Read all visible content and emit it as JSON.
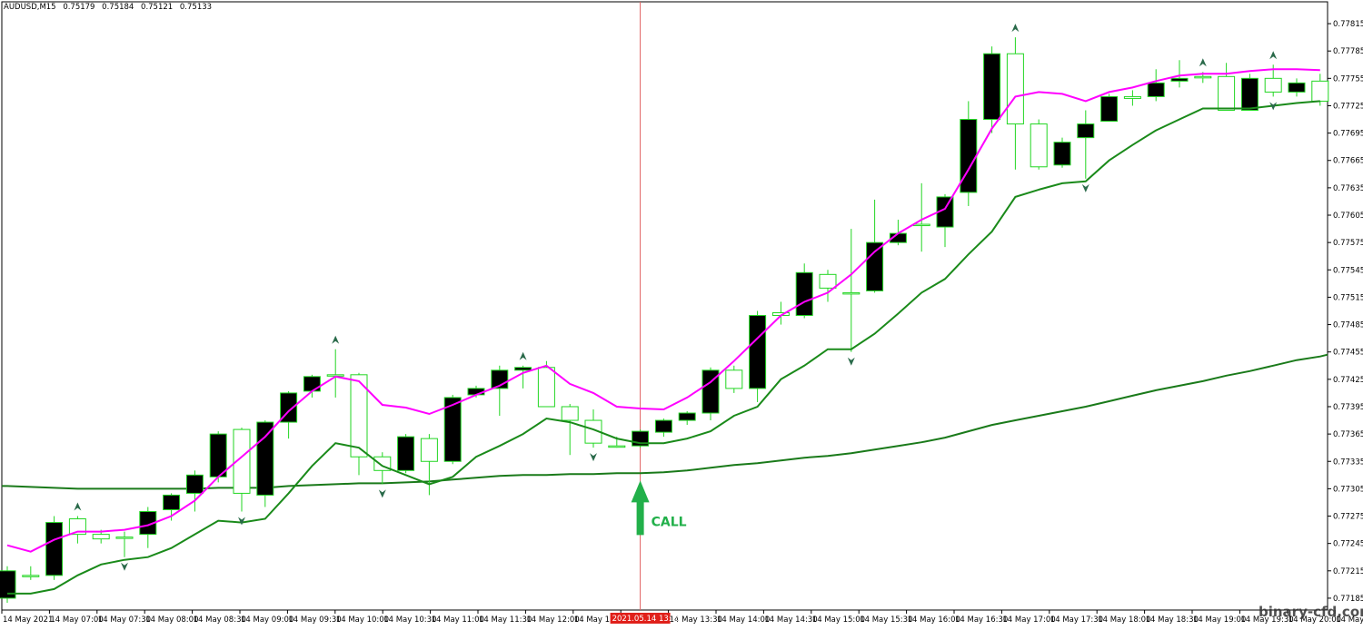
{
  "header": {
    "symbol": "AUDUSD,M15",
    "open": "0.75179",
    "high": "0.75184",
    "low": "0.75121",
    "close": "0.75133"
  },
  "colors": {
    "background": "#ffffff",
    "bull_candle": "#22d622",
    "bear_candle": "#000000",
    "ma_fast": "#ff00ff",
    "ma_slow": "#1a8a1a",
    "ma_long": "#1a7a1a",
    "signal_line": "#e06060",
    "call_arrow": "#22b04a",
    "time_label_bg": "#e0201a"
  },
  "signal": {
    "label": "CALL",
    "time_label": "2021.05.14 13:15",
    "candle_index": 27
  },
  "watermark": "binary-cfd.com",
  "chart_data": {
    "type": "candlestick",
    "title": "AUDUSD,M15",
    "y_ticks": [
      "0.77815",
      "0.77785",
      "0.77755",
      "0.77725",
      "0.77695",
      "0.77665",
      "0.77635",
      "0.77605",
      "0.77575",
      "0.77545",
      "0.77515",
      "0.77485",
      "0.77455",
      "0.77425",
      "0.77395",
      "0.77365",
      "0.77335",
      "0.77305",
      "0.77275",
      "0.77245",
      "0.77215",
      "0.77185"
    ],
    "ylim": [
      0.77172,
      0.77827
    ],
    "x_ticks": [
      "14 May 2021",
      "14 May 07:00",
      "14 May 07:30",
      "14 May 08:00",
      "14 May 08:30",
      "14 May 09:00",
      "14 May 09:30",
      "14 May 10:00",
      "14 May 10:30",
      "14 May 11:00",
      "14 May 11:30",
      "14 May 12:00",
      "14 May 12:30",
      "",
      "14 May 13:30",
      "14 May 14:00",
      "14 May 14:30",
      "14 May 15:00",
      "14 May 15:30",
      "14 May 16:00",
      "14 May 16:30",
      "14 May 17:00",
      "14 May 17:30",
      "14 May 18:00",
      "14 May 18:30",
      "14 May 19:00",
      "14 May 19:30",
      "14 May 20:00",
      "14 May 20:"
    ],
    "candles": [
      {
        "o": 0.77215,
        "h": 0.7722,
        "l": 0.7718,
        "c": 0.77185
      },
      {
        "o": 0.7721,
        "h": 0.7722,
        "l": 0.77205,
        "c": 0.7721
      },
      {
        "o": 0.77268,
        "h": 0.77275,
        "l": 0.77205,
        "c": 0.7721
      },
      {
        "o": 0.77255,
        "h": 0.77275,
        "l": 0.77245,
        "c": 0.77272
      },
      {
        "o": 0.7725,
        "h": 0.7726,
        "l": 0.77245,
        "c": 0.77255
      },
      {
        "o": 0.77252,
        "h": 0.77258,
        "l": 0.7723,
        "c": 0.77252
      },
      {
        "o": 0.7728,
        "h": 0.77285,
        "l": 0.7724,
        "c": 0.77255
      },
      {
        "o": 0.77298,
        "h": 0.773,
        "l": 0.7727,
        "c": 0.77282
      },
      {
        "o": 0.7732,
        "h": 0.77325,
        "l": 0.7728,
        "c": 0.773
      },
      {
        "o": 0.77365,
        "h": 0.77368,
        "l": 0.77312,
        "c": 0.77318
      },
      {
        "o": 0.773,
        "h": 0.77372,
        "l": 0.7728,
        "c": 0.7737
      },
      {
        "o": 0.77378,
        "h": 0.7738,
        "l": 0.77285,
        "c": 0.77298
      },
      {
        "o": 0.7741,
        "h": 0.77412,
        "l": 0.7736,
        "c": 0.77378
      },
      {
        "o": 0.77428,
        "h": 0.7743,
        "l": 0.77405,
        "c": 0.77412
      },
      {
        "o": 0.7743,
        "h": 0.77458,
        "l": 0.77405,
        "c": 0.7743
      },
      {
        "o": 0.7734,
        "h": 0.77432,
        "l": 0.7732,
        "c": 0.7743
      },
      {
        "o": 0.77325,
        "h": 0.77345,
        "l": 0.7731,
        "c": 0.7734
      },
      {
        "o": 0.77362,
        "h": 0.77365,
        "l": 0.77322,
        "c": 0.77325
      },
      {
        "o": 0.77335,
        "h": 0.77365,
        "l": 0.77298,
        "c": 0.7736
      },
      {
        "o": 0.77405,
        "h": 0.77408,
        "l": 0.77332,
        "c": 0.77335
      },
      {
        "o": 0.77415,
        "h": 0.77418,
        "l": 0.77405,
        "c": 0.77408
      },
      {
        "o": 0.77435,
        "h": 0.7744,
        "l": 0.77385,
        "c": 0.77415
      },
      {
        "o": 0.77438,
        "h": 0.7744,
        "l": 0.77415,
        "c": 0.77435
      },
      {
        "o": 0.77395,
        "h": 0.77445,
        "l": 0.77395,
        "c": 0.77438
      },
      {
        "o": 0.7738,
        "h": 0.77398,
        "l": 0.77342,
        "c": 0.77395
      },
      {
        "o": 0.77355,
        "h": 0.77392,
        "l": 0.7735,
        "c": 0.7738
      },
      {
        "o": 0.77352,
        "h": 0.77362,
        "l": 0.7735,
        "c": 0.77352
      },
      {
        "o": 0.77368,
        "h": 0.7737,
        "l": 0.7735,
        "c": 0.77352
      },
      {
        "o": 0.7738,
        "h": 0.77382,
        "l": 0.77362,
        "c": 0.77367
      },
      {
        "o": 0.77388,
        "h": 0.7739,
        "l": 0.77375,
        "c": 0.7738
      },
      {
        "o": 0.77435,
        "h": 0.77438,
        "l": 0.7738,
        "c": 0.77388
      },
      {
        "o": 0.77415,
        "h": 0.7744,
        "l": 0.7741,
        "c": 0.77435
      },
      {
        "o": 0.77495,
        "h": 0.775,
        "l": 0.774,
        "c": 0.77415
      },
      {
        "o": 0.77495,
        "h": 0.7751,
        "l": 0.77485,
        "c": 0.77498
      },
      {
        "o": 0.77542,
        "h": 0.77552,
        "l": 0.77492,
        "c": 0.77495
      },
      {
        "o": 0.77525,
        "h": 0.77545,
        "l": 0.7751,
        "c": 0.7754
      },
      {
        "o": 0.7752,
        "h": 0.7759,
        "l": 0.77455,
        "c": 0.7752
      },
      {
        "o": 0.77575,
        "h": 0.77622,
        "l": 0.7752,
        "c": 0.77522
      },
      {
        "o": 0.77585,
        "h": 0.776,
        "l": 0.77572,
        "c": 0.77575
      },
      {
        "o": 0.77595,
        "h": 0.7764,
        "l": 0.77565,
        "c": 0.77595
      },
      {
        "o": 0.77625,
        "h": 0.77628,
        "l": 0.7757,
        "c": 0.77592
      },
      {
        "o": 0.7771,
        "h": 0.7773,
        "l": 0.77615,
        "c": 0.7763
      },
      {
        "o": 0.77782,
        "h": 0.7779,
        "l": 0.77695,
        "c": 0.7771
      },
      {
        "o": 0.77705,
        "h": 0.778,
        "l": 0.77655,
        "c": 0.77782
      },
      {
        "o": 0.77658,
        "h": 0.7771,
        "l": 0.77655,
        "c": 0.77705
      },
      {
        "o": 0.77685,
        "h": 0.7769,
        "l": 0.77657,
        "c": 0.7766
      },
      {
        "o": 0.77705,
        "h": 0.7772,
        "l": 0.77645,
        "c": 0.7769
      },
      {
        "o": 0.77735,
        "h": 0.77738,
        "l": 0.77708,
        "c": 0.77708
      },
      {
        "o": 0.77733,
        "h": 0.77742,
        "l": 0.77725,
        "c": 0.77735
      },
      {
        "o": 0.7775,
        "h": 0.77765,
        "l": 0.7773,
        "c": 0.77735
      },
      {
        "o": 0.77755,
        "h": 0.77775,
        "l": 0.77745,
        "c": 0.77752
      },
      {
        "o": 0.77757,
        "h": 0.77762,
        "l": 0.7775,
        "c": 0.77757
      },
      {
        "o": 0.7772,
        "h": 0.77772,
        "l": 0.7772,
        "c": 0.77757
      },
      {
        "o": 0.77755,
        "h": 0.7776,
        "l": 0.7772,
        "c": 0.7772
      },
      {
        "o": 0.7774,
        "h": 0.7777,
        "l": 0.77735,
        "c": 0.77755
      },
      {
        "o": 0.7775,
        "h": 0.77755,
        "l": 0.77735,
        "c": 0.7774
      },
      {
        "o": 0.7773,
        "h": 0.7776,
        "l": 0.77725,
        "c": 0.77752
      }
    ],
    "ma_fast": [
      0.77243,
      0.77236,
      0.77249,
      0.77258,
      0.77258,
      0.7726,
      0.77265,
      0.77275,
      0.77292,
      0.77318,
      0.7734,
      0.77362,
      0.7739,
      0.77412,
      0.77428,
      0.77423,
      0.77397,
      0.77394,
      0.77387,
      0.77397,
      0.77408,
      0.77418,
      0.77432,
      0.7744,
      0.7742,
      0.7741,
      0.77395,
      0.77393,
      0.77392,
      0.77405,
      0.77422,
      0.77445,
      0.7747,
      0.77495,
      0.7751,
      0.7752,
      0.7754,
      0.77565,
      0.77585,
      0.776,
      0.77612,
      0.77655,
      0.777,
      0.77735,
      0.7774,
      0.77738,
      0.7773,
      0.7774,
      0.77745,
      0.77752,
      0.77758,
      0.7776,
      0.7776,
      0.77763,
      0.77765,
      0.77765,
      0.77764
    ],
    "ma_slow": [
      0.7719,
      0.7719,
      0.77195,
      0.7721,
      0.77222,
      0.77227,
      0.7723,
      0.7724,
      0.77255,
      0.7727,
      0.77268,
      0.77272,
      0.773,
      0.7733,
      0.77355,
      0.7735,
      0.7733,
      0.7732,
      0.7731,
      0.77318,
      0.7734,
      0.77352,
      0.77365,
      0.77382,
      0.77378,
      0.7737,
      0.7736,
      0.77355,
      0.77355,
      0.7736,
      0.77368,
      0.77385,
      0.77395,
      0.77425,
      0.7744,
      0.77458,
      0.77458,
      0.77475,
      0.77497,
      0.7752,
      0.77535,
      0.77562,
      0.77587,
      0.77625,
      0.77633,
      0.7764,
      0.77642,
      0.77665,
      0.77682,
      0.77698,
      0.7771,
      0.77722,
      0.77722,
      0.77722,
      0.77725,
      0.77728,
      0.7773
    ],
    "ma_long": [
      0.77308,
      0.77307,
      0.77306,
      0.77305,
      0.77305,
      0.77305,
      0.77305,
      0.77305,
      0.77305,
      0.77306,
      0.77306,
      0.77306,
      0.77308,
      0.77309,
      0.7731,
      0.77311,
      0.77311,
      0.77312,
      0.77313,
      0.77315,
      0.77317,
      0.77319,
      0.7732,
      0.7732,
      0.77321,
      0.77321,
      0.77322,
      0.77322,
      0.77323,
      0.77325,
      0.77328,
      0.77331,
      0.77333,
      0.77336,
      0.77339,
      0.77341,
      0.77344,
      0.77348,
      0.77352,
      0.77356,
      0.77361,
      0.77368,
      0.77375,
      0.7738,
      0.77385,
      0.7739,
      0.77395,
      0.77401,
      0.77407,
      0.77413,
      0.77418,
      0.77423,
      0.77429,
      0.77434,
      0.7744,
      0.77446,
      0.7745
    ],
    "fractals_up": [
      3,
      14,
      22,
      43,
      51,
      54
    ],
    "fractals_down": [
      5,
      10,
      16,
      25,
      36,
      46,
      54
    ]
  }
}
